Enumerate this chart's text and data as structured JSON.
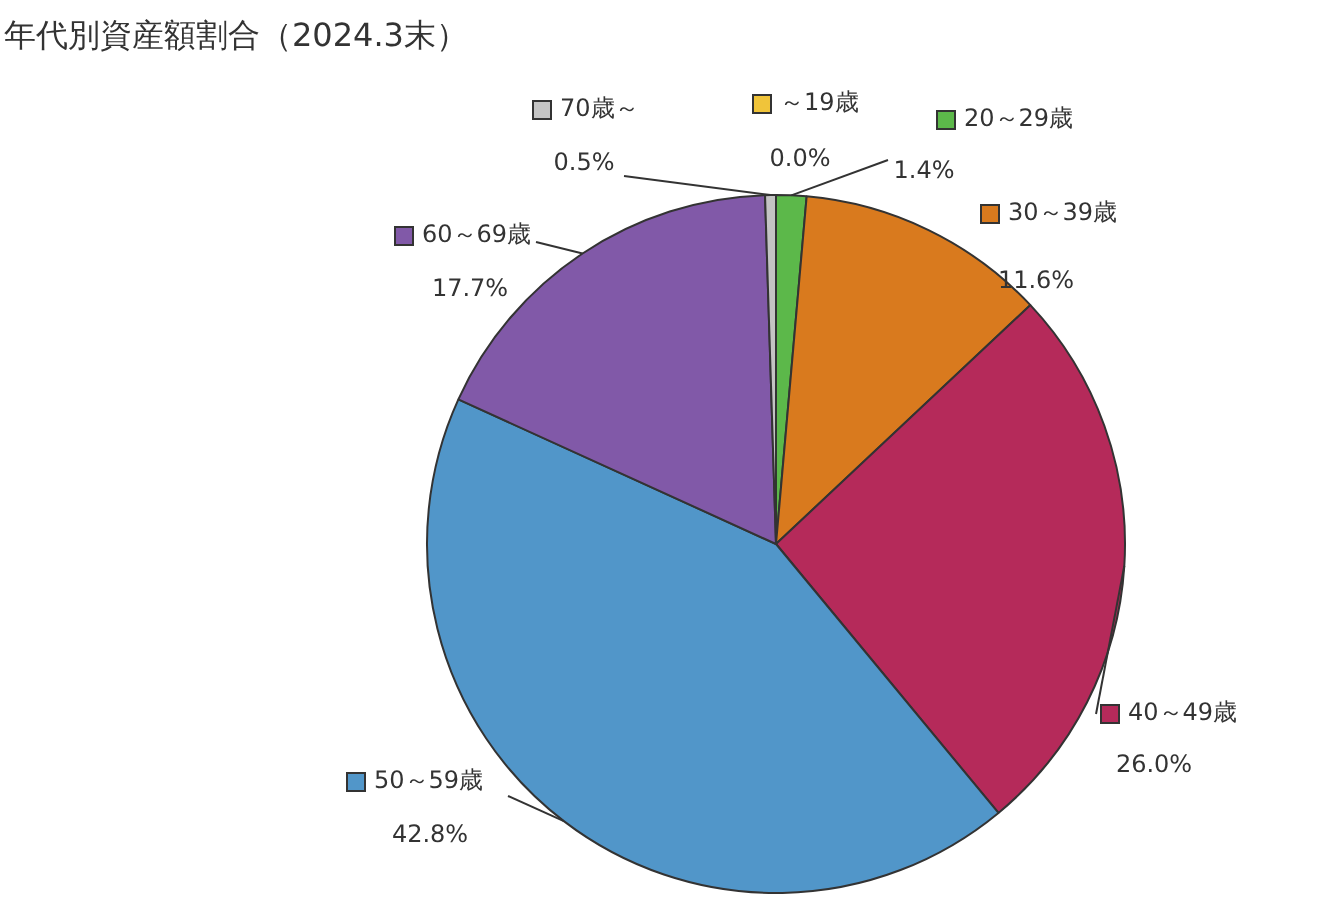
{
  "chart_data": {
    "type": "pie",
    "title": "年代別資産額割合（2024.3末）",
    "categories": [
      "～19歳",
      "20～29歳",
      "30～39歳",
      "40～49歳",
      "50～59歳",
      "60～69歳",
      "70歳～"
    ],
    "values": [
      0.0,
      1.4,
      11.6,
      26.0,
      42.8,
      17.7,
      0.5
    ],
    "colors": [
      "#f0c43a",
      "#5cb84a",
      "#d97a1e",
      "#b52a5a",
      "#5196c9",
      "#8159a8",
      "#c4c4c4"
    ],
    "value_labels": [
      "0.0%",
      "1.4%",
      "11.6%",
      "26.0%",
      "42.8%",
      "17.7%",
      "0.5%"
    ],
    "legend": "right"
  }
}
